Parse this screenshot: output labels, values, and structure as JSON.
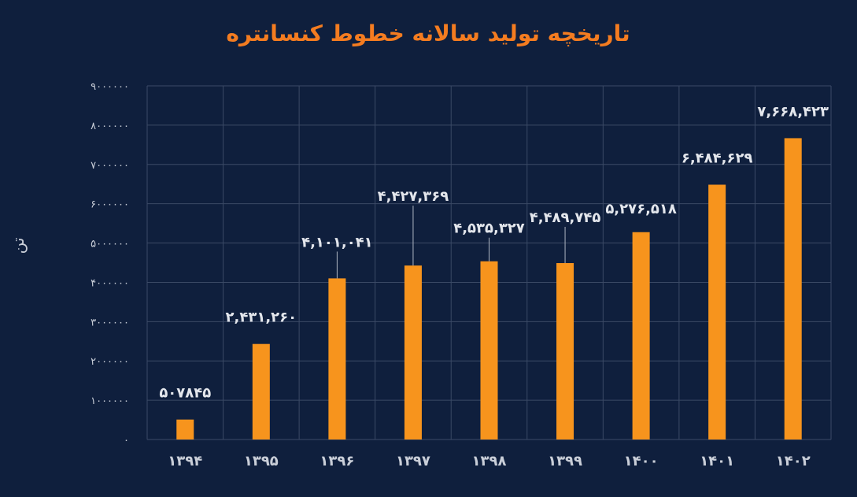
{
  "chart_data": {
    "type": "bar",
    "title": "تاریخچه تولید سالانه خطوط کنسانتره",
    "ylabel": "تن",
    "categories": [
      "۱۳۹۴",
      "۱۳۹۵",
      "۱۳۹۶",
      "۱۳۹۷",
      "۱۳۹۸",
      "۱۳۹۹",
      "۱۴۰۰",
      "۱۴۰۱",
      "۱۴۰۲"
    ],
    "values": [
      507845,
      2431260,
      4101041,
      4427369,
      4535327,
      4489745,
      5276518,
      6484629,
      7668423
    ],
    "value_labels": [
      "۵۰۷۸۴۵",
      "۲,۴۳۱,۲۶۰",
      "۴,۱۰۱,۰۴۱",
      "۴,۴۲۷,۳۶۹",
      "۴,۵۳۵,۳۲۷",
      "۴,۴۸۹,۷۴۵",
      "۵,۲۷۶,۵۱۸",
      "۶,۴۸۴,۶۲۹",
      "۷,۶۶۸,۴۲۳"
    ],
    "ylim": [
      0,
      9000000
    ],
    "yticks": [
      0,
      1000000,
      2000000,
      3000000,
      4000000,
      5000000,
      6000000,
      7000000,
      8000000,
      9000000
    ],
    "ytick_labels": [
      "۰",
      "۱۰۰۰۰۰۰",
      "۲۰۰۰۰۰۰",
      "۳۰۰۰۰۰۰",
      "۴۰۰۰۰۰۰",
      "۵۰۰۰۰۰۰",
      "۶۰۰۰۰۰۰",
      "۷۰۰۰۰۰۰",
      "۸۰۰۰۰۰۰",
      "۹۰۰۰۰۰۰"
    ],
    "grid": true,
    "colors": {
      "bar": "#f7941d",
      "title": "#f47c20",
      "background": "#0f1f3d"
    }
  }
}
